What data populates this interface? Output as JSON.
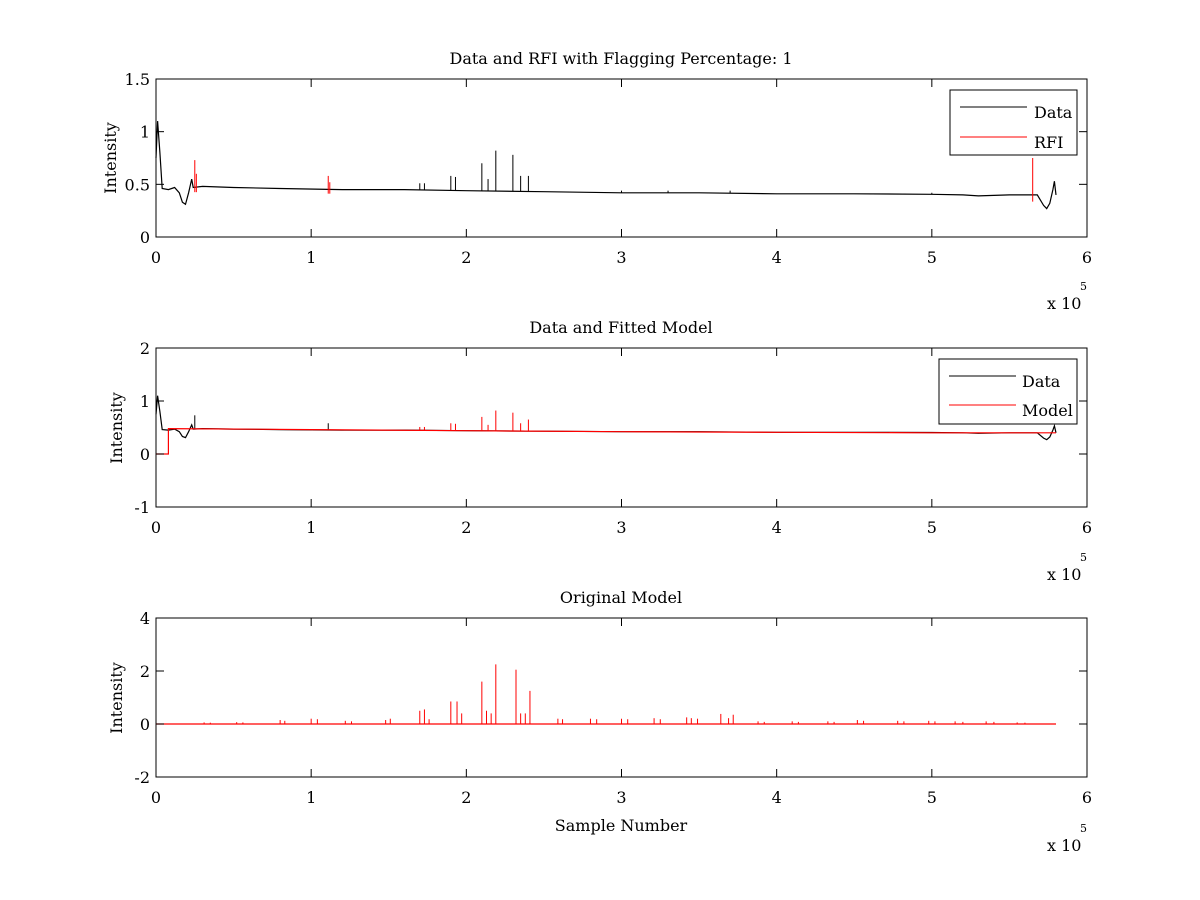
{
  "chart_data": [
    {
      "type": "line",
      "title": "Data and RFI with Flagging Percentage: 1",
      "xlabel": "",
      "ylabel": "Intensity",
      "xlim": [
        0,
        600000
      ],
      "ylim": [
        0,
        1.5
      ],
      "xticks": [
        0,
        100000,
        200000,
        300000,
        400000,
        500000,
        600000
      ],
      "xtick_labels": [
        "0",
        "1",
        "2",
        "3",
        "4",
        "5",
        "6"
      ],
      "yticks": [
        0,
        0.5,
        1,
        1.5
      ],
      "ytick_labels": [
        "0",
        "0.5",
        "1",
        "1.5"
      ],
      "x_multiplier": "x 10",
      "x_multiplier_exp": "5",
      "legend": "top-right",
      "grid": false,
      "series": [
        {
          "name": "Data",
          "color": "#000000",
          "points": [
            [
              0,
              0.75
            ],
            [
              1000,
              1.1
            ],
            [
              2500,
              0.8
            ],
            [
              4000,
              0.46
            ],
            [
              8000,
              0.45
            ],
            [
              12000,
              0.47
            ],
            [
              15000,
              0.42
            ],
            [
              17000,
              0.33
            ],
            [
              19000,
              0.31
            ],
            [
              21000,
              0.42
            ],
            [
              23000,
              0.55
            ],
            [
              24000,
              0.47
            ],
            [
              30000,
              0.48
            ],
            [
              50000,
              0.47
            ],
            [
              80000,
              0.46
            ],
            [
              120000,
              0.45
            ],
            [
              160000,
              0.45
            ],
            [
              200000,
              0.44
            ],
            [
              250000,
              0.43
            ],
            [
              300000,
              0.42
            ],
            [
              350000,
              0.42
            ],
            [
              400000,
              0.41
            ],
            [
              450000,
              0.41
            ],
            [
              500000,
              0.405
            ],
            [
              520000,
              0.4
            ],
            [
              530000,
              0.39
            ],
            [
              550000,
              0.4
            ],
            [
              568000,
              0.4
            ],
            [
              572000,
              0.3
            ],
            [
              574000,
              0.27
            ],
            [
              576000,
              0.32
            ],
            [
              578000,
              0.45
            ],
            [
              579000,
              0.53
            ],
            [
              580000,
              0.4
            ]
          ],
          "spikes": [
            [
              170000,
              0.51
            ],
            [
              173000,
              0.51
            ],
            [
              190000,
              0.58
            ],
            [
              193000,
              0.57
            ],
            [
              210000,
              0.7
            ],
            [
              214000,
              0.55
            ],
            [
              219000,
              0.82
            ],
            [
              230000,
              0.78
            ],
            [
              235000,
              0.58
            ],
            [
              240000,
              0.58
            ],
            [
              300000,
              0.44
            ],
            [
              330000,
              0.44
            ],
            [
              370000,
              0.44
            ],
            [
              500000,
              0.42
            ]
          ]
        },
        {
          "name": "RFI",
          "color": "#ff0000",
          "spikes": [
            [
              25000,
              0.73
            ],
            [
              26000,
              0.6
            ],
            [
              111000,
              0.58
            ],
            [
              112000,
              0.52
            ],
            [
              565000,
              0.75
            ]
          ]
        }
      ]
    },
    {
      "type": "line",
      "title": "Data and Fitted Model",
      "xlabel": "",
      "ylabel": "Intensity",
      "xlim": [
        0,
        600000
      ],
      "ylim": [
        -1,
        2
      ],
      "xticks": [
        0,
        100000,
        200000,
        300000,
        400000,
        500000,
        600000
      ],
      "xtick_labels": [
        "0",
        "1",
        "2",
        "3",
        "4",
        "5",
        "6"
      ],
      "yticks": [
        -1,
        0,
        1,
        2
      ],
      "ytick_labels": [
        "-1",
        "0",
        "1",
        "2"
      ],
      "x_multiplier": "x 10",
      "x_multiplier_exp": "5",
      "legend": "top-right",
      "grid": false,
      "series": [
        {
          "name": "Data",
          "color": "#000000",
          "points": [
            [
              0,
              0.75
            ],
            [
              1000,
              1.1
            ],
            [
              2500,
              0.8
            ],
            [
              4000,
              0.46
            ],
            [
              8000,
              0.45
            ],
            [
              12000,
              0.47
            ],
            [
              15000,
              0.42
            ],
            [
              17000,
              0.33
            ],
            [
              19000,
              0.31
            ],
            [
              21000,
              0.42
            ],
            [
              23000,
              0.55
            ],
            [
              24000,
              0.47
            ],
            [
              30000,
              0.48
            ],
            [
              50000,
              0.47
            ],
            [
              80000,
              0.46
            ],
            [
              120000,
              0.45
            ],
            [
              160000,
              0.45
            ],
            [
              200000,
              0.44
            ],
            [
              250000,
              0.43
            ],
            [
              300000,
              0.42
            ],
            [
              350000,
              0.42
            ],
            [
              400000,
              0.41
            ],
            [
              450000,
              0.41
            ],
            [
              500000,
              0.405
            ],
            [
              520000,
              0.4
            ],
            [
              530000,
              0.39
            ],
            [
              550000,
              0.4
            ],
            [
              568000,
              0.4
            ],
            [
              572000,
              0.3
            ],
            [
              574000,
              0.27
            ],
            [
              576000,
              0.32
            ],
            [
              578000,
              0.45
            ],
            [
              579000,
              0.53
            ],
            [
              580000,
              0.4
            ]
          ],
          "spikes": [
            [
              25000,
              0.73
            ],
            [
              111000,
              0.58
            ]
          ]
        },
        {
          "name": "Model",
          "color": "#ff0000",
          "points": [
            [
              0,
              0
            ],
            [
              8000,
              0
            ],
            [
              8000,
              0.48
            ],
            [
              100000,
              0.46
            ],
            [
              200000,
              0.44
            ],
            [
              300000,
              0.42
            ],
            [
              400000,
              0.41
            ],
            [
              500000,
              0.4
            ],
            [
              580000,
              0.4
            ]
          ],
          "spikes": [
            [
              170000,
              0.51
            ],
            [
              173000,
              0.51
            ],
            [
              190000,
              0.58
            ],
            [
              193000,
              0.57
            ],
            [
              210000,
              0.7
            ],
            [
              214000,
              0.55
            ],
            [
              219000,
              0.82
            ],
            [
              230000,
              0.78
            ],
            [
              235000,
              0.58
            ],
            [
              240000,
              0.65
            ]
          ]
        }
      ]
    },
    {
      "type": "line",
      "title": "Original Model",
      "xlabel": "Sample Number",
      "ylabel": "Intensity",
      "xlim": [
        0,
        600000
      ],
      "ylim": [
        -2,
        4
      ],
      "xticks": [
        0,
        100000,
        200000,
        300000,
        400000,
        500000,
        600000
      ],
      "xtick_labels": [
        "0",
        "1",
        "2",
        "3",
        "4",
        "5",
        "6"
      ],
      "yticks": [
        -2,
        0,
        2,
        4
      ],
      "ytick_labels": [
        "-2",
        "0",
        "2",
        "4"
      ],
      "x_multiplier": "x 10",
      "x_multiplier_exp": "5",
      "legend": "none",
      "grid": false,
      "series": [
        {
          "color": "#ff0000",
          "points": [
            [
              0,
              0
            ],
            [
              580000,
              0
            ]
          ],
          "spikes": [
            [
              31000,
              0.06
            ],
            [
              35000,
              0.05
            ],
            [
              52000,
              0.07
            ],
            [
              56000,
              0.06
            ],
            [
              80000,
              0.15
            ],
            [
              83000,
              0.12
            ],
            [
              100000,
              0.2
            ],
            [
              104000,
              0.18
            ],
            [
              122000,
              0.12
            ],
            [
              126000,
              0.1
            ],
            [
              148000,
              0.15
            ],
            [
              151000,
              0.2
            ],
            [
              170000,
              0.5
            ],
            [
              173000,
              0.55
            ],
            [
              176000,
              0.18
            ],
            [
              190000,
              0.85
            ],
            [
              194000,
              0.85
            ],
            [
              197000,
              0.4
            ],
            [
              210000,
              1.6
            ],
            [
              213000,
              0.5
            ],
            [
              216000,
              0.4
            ],
            [
              219000,
              2.25
            ],
            [
              232000,
              2.05
            ],
            [
              235000,
              0.4
            ],
            [
              238000,
              0.4
            ],
            [
              241000,
              1.25
            ],
            [
              259000,
              0.2
            ],
            [
              262000,
              0.18
            ],
            [
              280000,
              0.2
            ],
            [
              284000,
              0.18
            ],
            [
              300000,
              0.2
            ],
            [
              304000,
              0.18
            ],
            [
              321000,
              0.22
            ],
            [
              325000,
              0.18
            ],
            [
              342000,
              0.25
            ],
            [
              345000,
              0.22
            ],
            [
              349000,
              0.2
            ],
            [
              364000,
              0.38
            ],
            [
              369000,
              0.22
            ],
            [
              372000,
              0.35
            ],
            [
              388000,
              0.1
            ],
            [
              392000,
              0.08
            ],
            [
              410000,
              0.1
            ],
            [
              414000,
              0.08
            ],
            [
              433000,
              0.1
            ],
            [
              437000,
              0.08
            ],
            [
              452000,
              0.15
            ],
            [
              456000,
              0.12
            ],
            [
              478000,
              0.12
            ],
            [
              482000,
              0.1
            ],
            [
              498000,
              0.12
            ],
            [
              502000,
              0.1
            ],
            [
              515000,
              0.1
            ],
            [
              520000,
              0.08
            ],
            [
              535000,
              0.1
            ],
            [
              540000,
              0.08
            ],
            [
              555000,
              0.06
            ],
            [
              560000,
              0.05
            ]
          ]
        }
      ]
    }
  ]
}
